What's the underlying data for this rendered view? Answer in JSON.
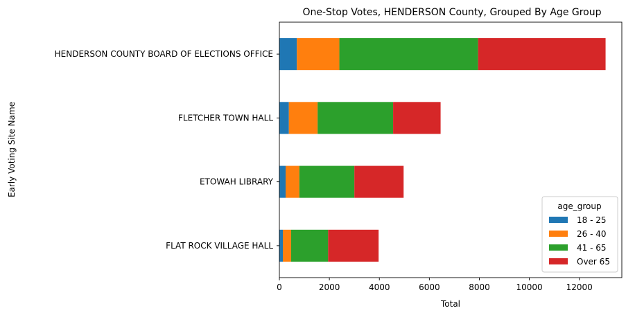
{
  "chart_data": {
    "type": "bar",
    "orientation": "horizontal",
    "stacked": true,
    "title": "One-Stop Votes, HENDERSON County, Grouped By Age Group",
    "xlabel": "Total",
    "ylabel": "Early Voting Site Name",
    "xlim": [
      0,
      13700
    ],
    "xticks": [
      0,
      2000,
      4000,
      6000,
      8000,
      10000,
      12000
    ],
    "categories": [
      "HENDERSON COUNTY BOARD OF ELECTIONS OFFICE",
      "FLETCHER TOWN HALL",
      "ETOWAH LIBRARY",
      "FLAT ROCK VILLAGE HALL"
    ],
    "series": [
      {
        "name": "18 - 25",
        "color": "#1f77b4",
        "values": [
          700,
          380,
          250,
          140
        ]
      },
      {
        "name": "26 - 40",
        "color": "#ff7f0e",
        "values": [
          1700,
          1150,
          550,
          330
        ]
      },
      {
        "name": "41 - 65",
        "color": "#2ca02c",
        "values": [
          5550,
          3020,
          2200,
          1480
        ]
      },
      {
        "name": "Over 65",
        "color": "#d62728",
        "values": [
          5100,
          1900,
          1970,
          2020
        ]
      }
    ],
    "legend": {
      "title": "age_group",
      "placement": "lower right"
    },
    "grid": false
  }
}
